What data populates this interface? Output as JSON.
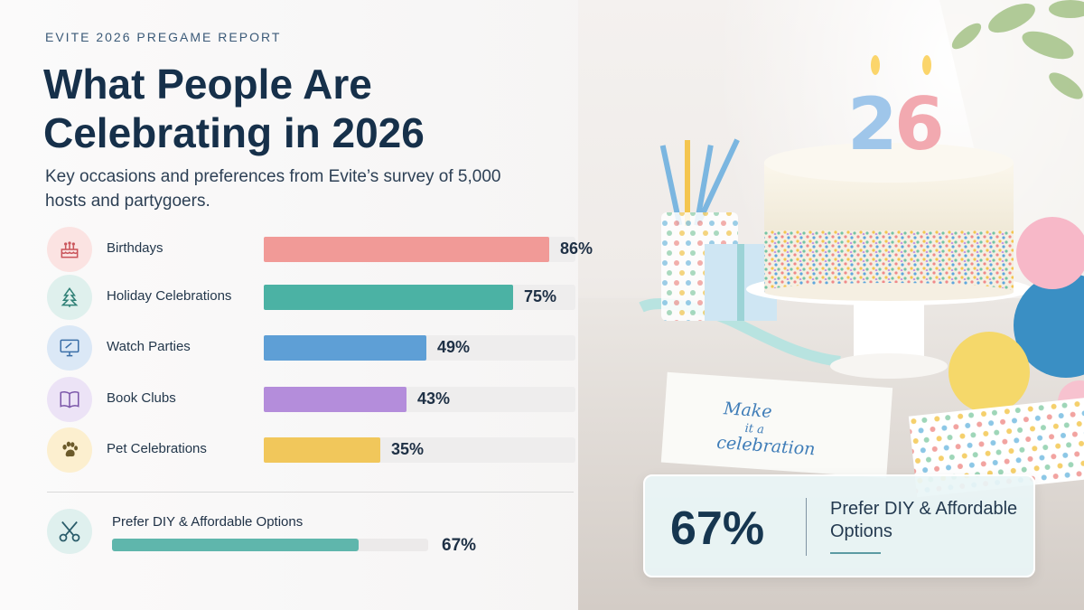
{
  "header": {
    "eyebrow": "EVITE 2026 PREGAME REPORT",
    "title": "What People Are Celebrating in 2026",
    "subtitle": "Key occasions and preferences from Evite’s survey of 5,000 hosts and partygoers."
  },
  "chart_data": {
    "type": "bar",
    "orientation": "horizontal",
    "categories": [
      "Birthdays",
      "Holiday Celebrations",
      "Watch Parties",
      "Book Clubs",
      "Pet Celebrations"
    ],
    "values": [
      86,
      75,
      49,
      43,
      35
    ],
    "value_labels": [
      "86%",
      "75%",
      "49%",
      "43%",
      "35%"
    ],
    "colors": [
      "#f19a97",
      "#4bb2a4",
      "#5e9fd6",
      "#b48ddb",
      "#f1c75b"
    ],
    "icon_backgrounds": [
      "#fbe3e2",
      "#dff0ed",
      "#dbe8f6",
      "#ece3f6",
      "#fcefcf"
    ],
    "icons": [
      "birthday-cake-icon",
      "christmas-tree-icon",
      "monitor-icon",
      "open-book-icon",
      "paw-print-icon"
    ],
    "xlim": [
      0,
      100
    ]
  },
  "diy": {
    "label": "Prefer DIY & Affordable Options",
    "value": 67,
    "value_label": "67%",
    "color": "#5fb6ac",
    "icon": "scissors-icon"
  },
  "callout": {
    "value_label": "67%",
    "text": "Prefer DIY & Affordable Options"
  }
}
